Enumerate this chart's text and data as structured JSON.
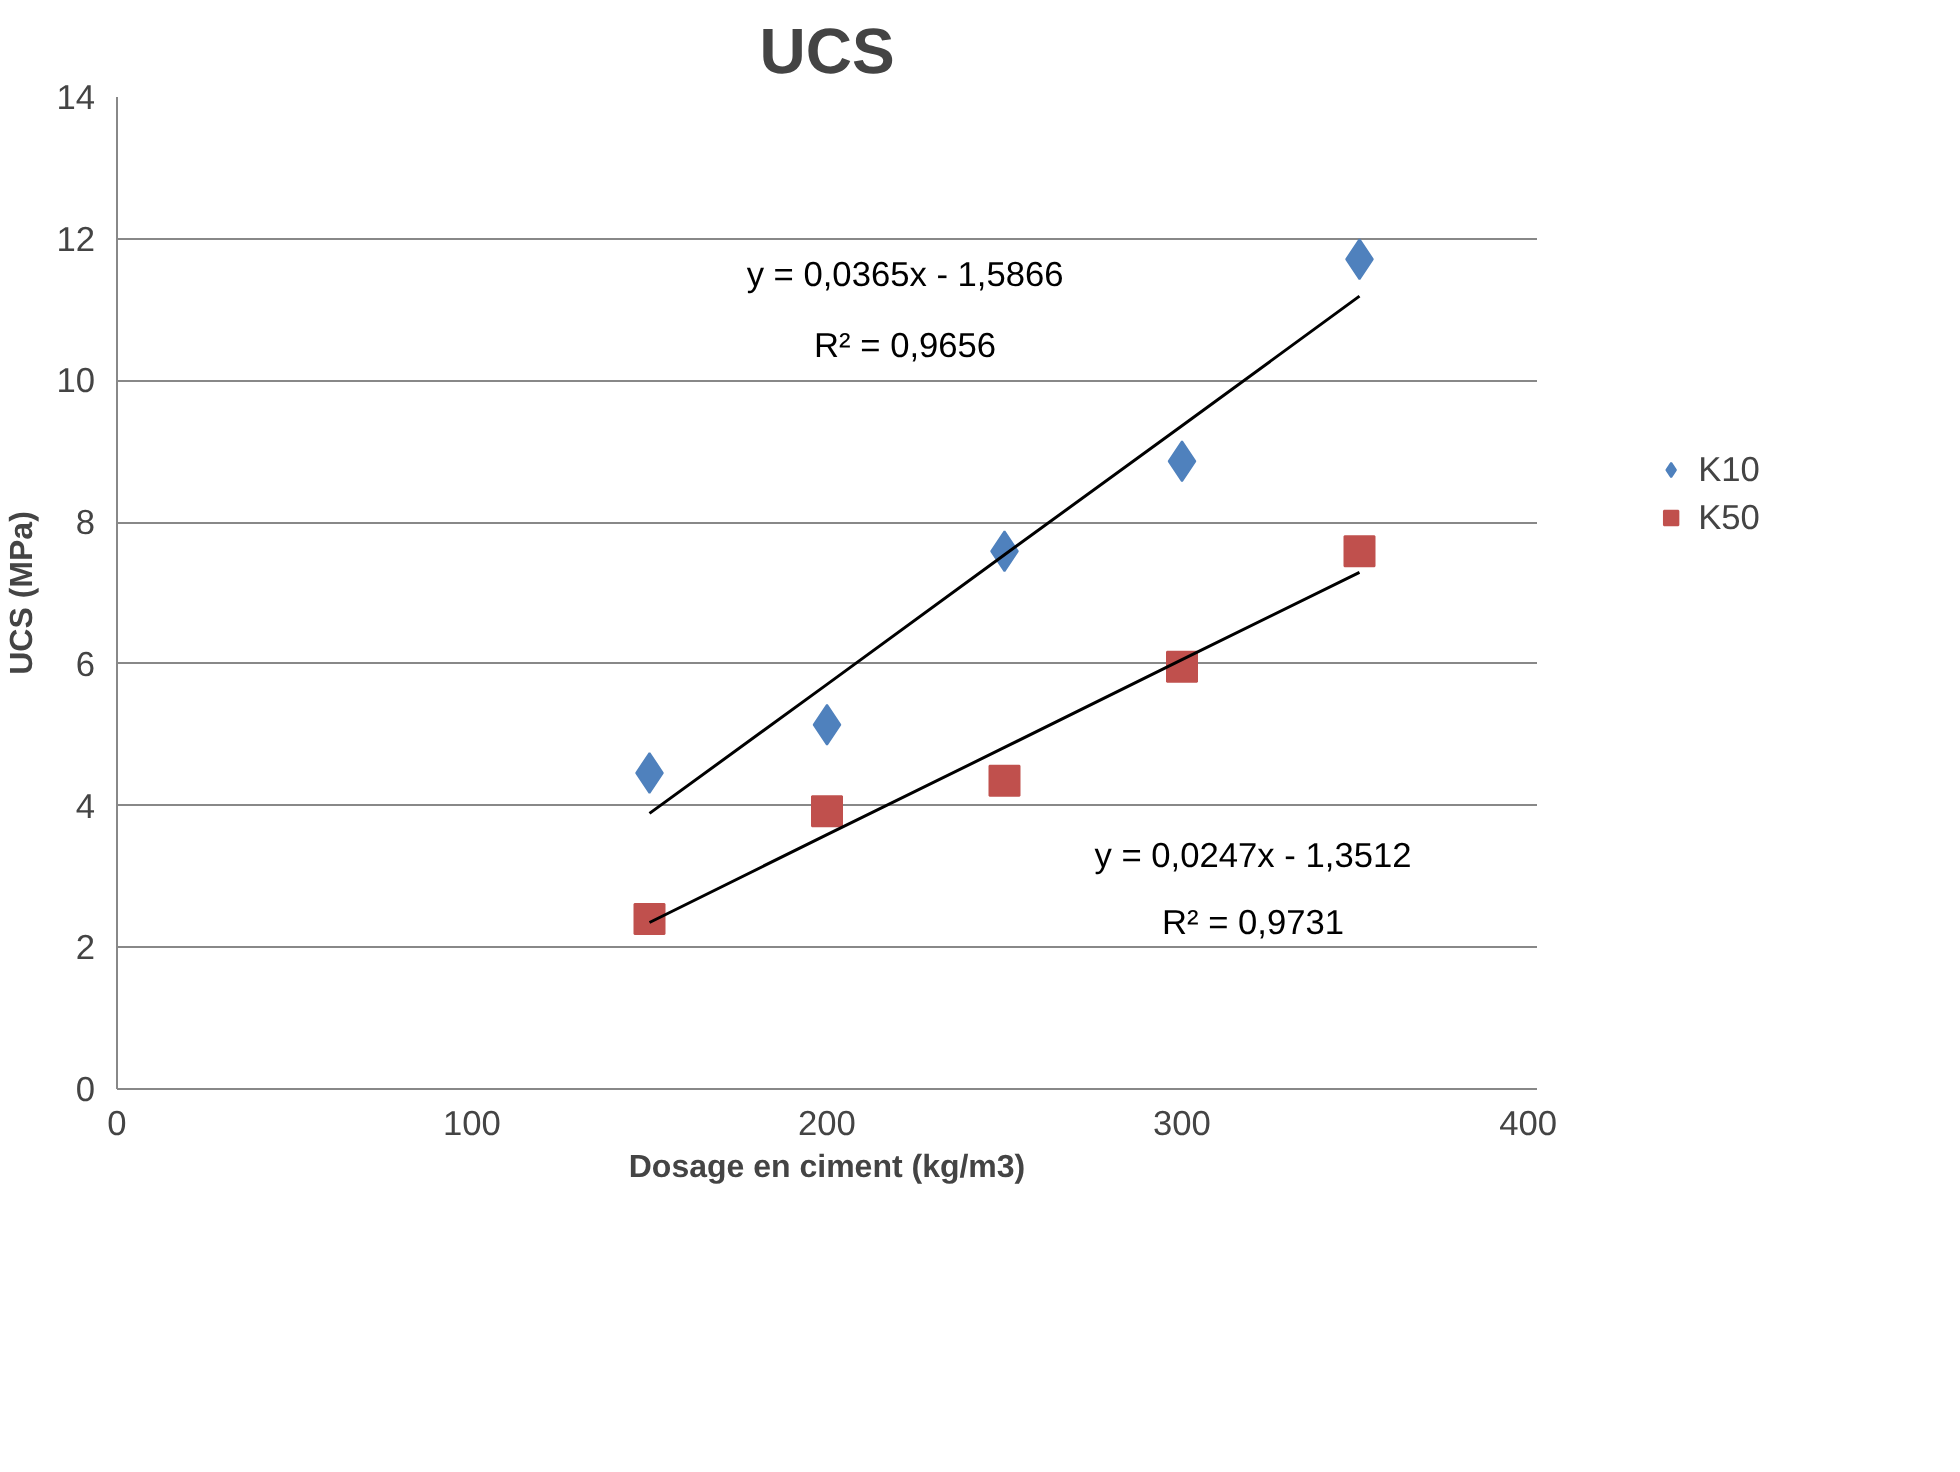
{
  "chart_data": {
    "type": "scatter",
    "title": "UCS",
    "xlabel": "Dosage en ciment (kg/m3)",
    "ylabel": "UCS (MPa)",
    "x": [
      150,
      200,
      250,
      300,
      350
    ],
    "series": [
      {
        "name": "K10",
        "color": "#4f81bd",
        "marker": "diamond",
        "values": [
          4.46,
          5.14,
          7.59,
          8.86,
          11.71
        ]
      },
      {
        "name": "K50",
        "color": "#c0504d",
        "marker": "square",
        "values": [
          2.4,
          3.92,
          4.35,
          5.96,
          7.59
        ]
      },
      {
        "type": "line",
        "color": "#000000",
        "values": [
          3.89,
          5.71,
          7.54,
          9.36,
          11.19
        ]
      },
      {
        "type": "line",
        "color": "#000000",
        "values": [
          2.35,
          3.59,
          4.82,
          6.06,
          7.29
        ]
      }
    ],
    "annotations": [
      "y = 0,0365x - 1,5866",
      "R² = 0,9656",
      "y = 0,0247x - 1,3512",
      "R² = 0,9731"
    ],
    "xlim": [
      0,
      400
    ],
    "xticks": [
      0,
      100,
      200,
      300,
      400
    ],
    "ylim": [
      0,
      14
    ],
    "yticks": [
      0,
      2,
      4,
      6,
      8,
      10,
      12,
      14
    ],
    "grid": "y",
    "legend": "right"
  }
}
